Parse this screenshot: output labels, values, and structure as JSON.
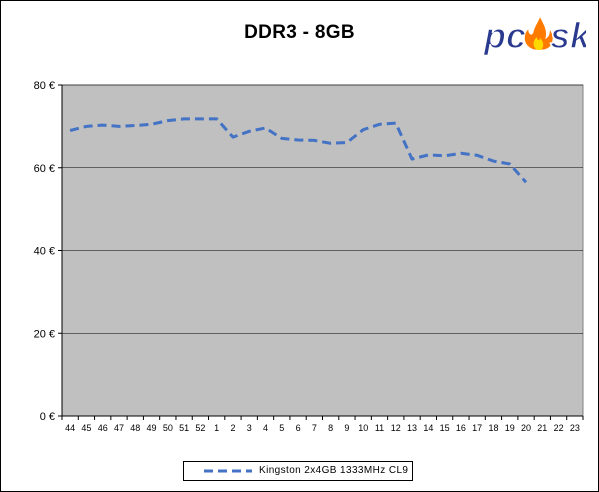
{
  "chart_data": {
    "type": "line",
    "title": "DDR3 - 8GB",
    "xlabel": "",
    "ylabel": "",
    "categories": [
      "44",
      "45",
      "46",
      "47",
      "48",
      "49",
      "50",
      "51",
      "52",
      "1",
      "2",
      "3",
      "4",
      "5",
      "6",
      "7",
      "8",
      "9",
      "10",
      "11",
      "12",
      "13",
      "14",
      "15",
      "16",
      "17",
      "18",
      "19",
      "20",
      "21",
      "22",
      "23"
    ],
    "ylim": [
      0,
      80
    ],
    "yticks": [
      "0 €",
      "20 €",
      "40 €",
      "60 €",
      "80 €"
    ],
    "series": [
      {
        "name": "Kingston 2x4GB 1333MHz CL9",
        "color": "#4472c4",
        "values": [
          69,
          70,
          70.3,
          70,
          70.2,
          70.5,
          71.4,
          71.8,
          71.8,
          71.8,
          67.4,
          68.8,
          69.6,
          67.1,
          66.7,
          66.6,
          65.9,
          66.1,
          69.2,
          70.5,
          70.8,
          62.1,
          63.1,
          62.9,
          63.5,
          63,
          61.6,
          60.9,
          56.5,
          null,
          null,
          null
        ]
      }
    ],
    "grid": true,
    "legend_position": "bottom",
    "plot_background": "#c0c0c0"
  },
  "logo": {
    "text": "pcdsk",
    "colors": {
      "main": "#2a3a8f",
      "flame": "#ff7a00"
    }
  }
}
